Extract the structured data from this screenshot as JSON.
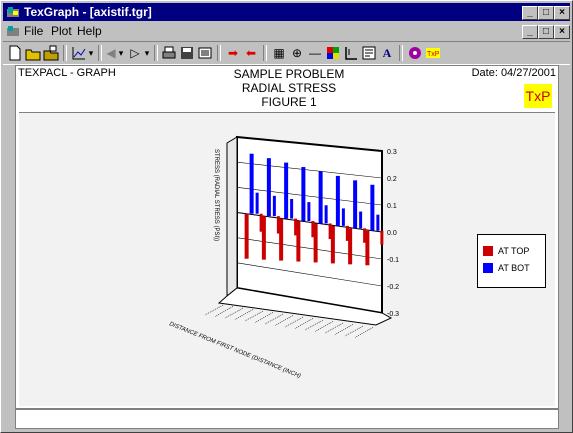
{
  "window": {
    "title": "TexGraph - [axistif.tgr]",
    "minimize_glyph": "_",
    "maximize_glyph": "□",
    "close_glyph": "×"
  },
  "menu": {
    "items": [
      {
        "label": "File"
      },
      {
        "label": "Plot"
      },
      {
        "label": "Help"
      }
    ]
  },
  "toolbar": {
    "icons": [
      "new-file-icon",
      "open-folder-icon",
      "open-file-icon",
      "chart-type-icon",
      "dropdown-icon",
      "previous-icon",
      "dropdown-icon",
      "next-icon",
      "dropdown-icon",
      "print-icon",
      "save-icon",
      "preview-icon",
      "arrow-right-icon",
      "arrow-left-icon",
      "grid-icon",
      "axes-plus-icon",
      "line-icon",
      "color-icon",
      "axes-icon",
      "text-box-icon",
      "font-icon",
      "settings-icon",
      "txp-logo-icon"
    ]
  },
  "graph": {
    "header_left": "TEXPACL - GRAPH",
    "title_lines": [
      "SAMPLE PROBLEM",
      "RADIAL STRESS",
      "FIGURE 1"
    ],
    "date": "Date: 04/27/2001",
    "logo": "TxP",
    "x_axis_label": "DISTANCE FROM FIRST NODE (DISTANCE (INCH)",
    "y_axis_label": "STRESS (RADIAL STRESS (PSI))",
    "y_ticks": [
      "0.3",
      "0.2",
      "0.1",
      "0.0",
      "-0.1",
      "-0.2",
      "-0.3"
    ]
  },
  "chart_data": {
    "type": "bar",
    "series": [
      {
        "name": "AT TOP",
        "color": "#cc0000"
      },
      {
        "name": "AT BOT",
        "color": "#0000ff"
      }
    ],
    "ylim": [
      -0.3,
      0.3
    ],
    "legend_position": "right"
  },
  "colors": {
    "titlebar": "#000080",
    "top_series": "#cc0000",
    "bot_series": "#0000ff",
    "logo_bg": "#ffff00"
  }
}
